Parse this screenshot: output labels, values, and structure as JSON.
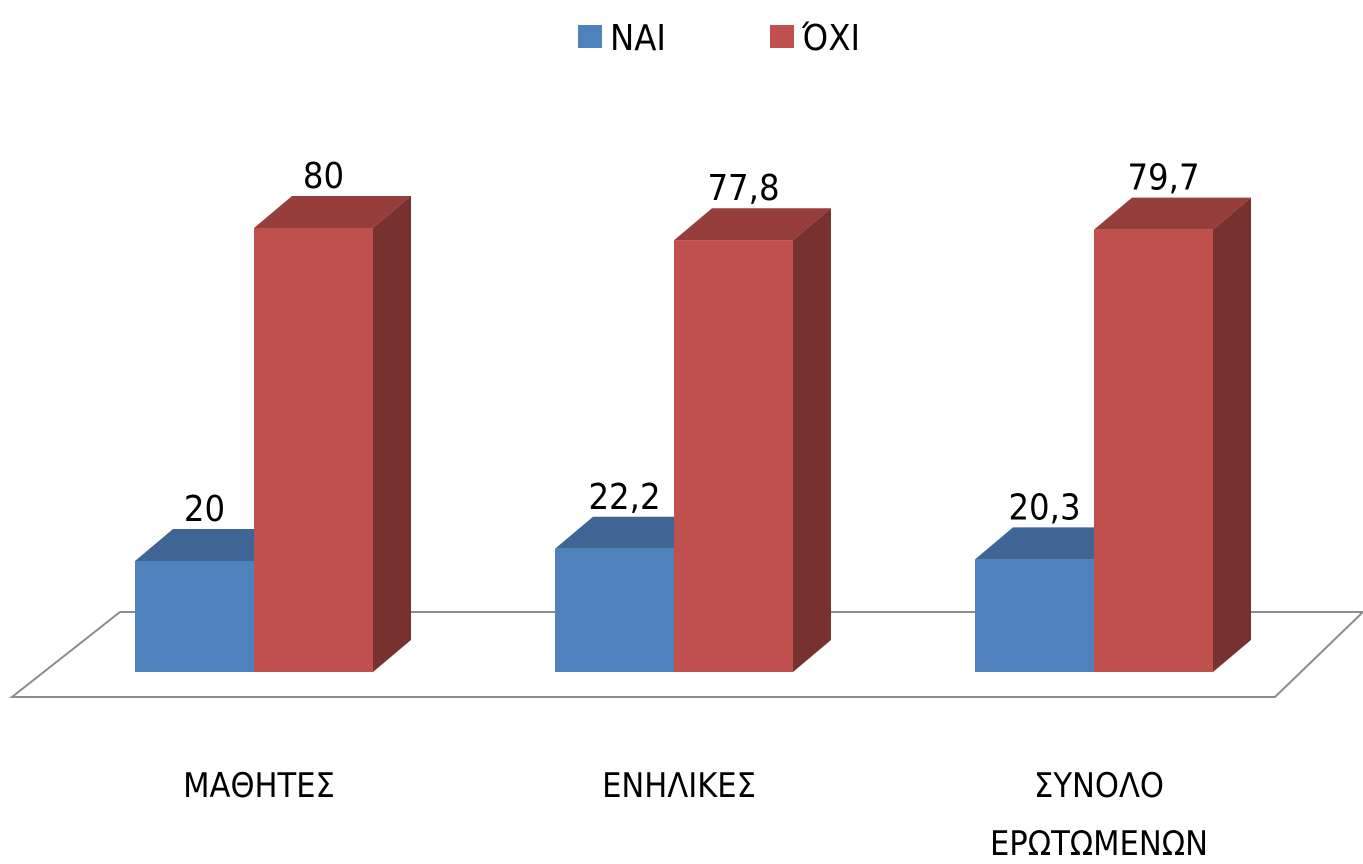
{
  "chart_data": {
    "type": "bar3d",
    "categories": [
      "ΜΑΘΗΤΕΣ",
      "ΕΝΗΛΙΚΕΣ",
      "ΣΥΝΟΛΟ ΕΡΩΤΩΜΕΝΩΝ"
    ],
    "series": [
      {
        "name": "ΝΑΙ",
        "color": "#4f81bd",
        "values": [
          20,
          22.2,
          20.3
        ],
        "value_labels": [
          "20",
          "22,2",
          "20,3"
        ]
      },
      {
        "name": "ΌΧΙ",
        "color": "#c0504d",
        "values": [
          80,
          77.8,
          79.7
        ],
        "value_labels": [
          "80",
          "77,8",
          "79,7"
        ]
      }
    ],
    "legend": "top"
  }
}
